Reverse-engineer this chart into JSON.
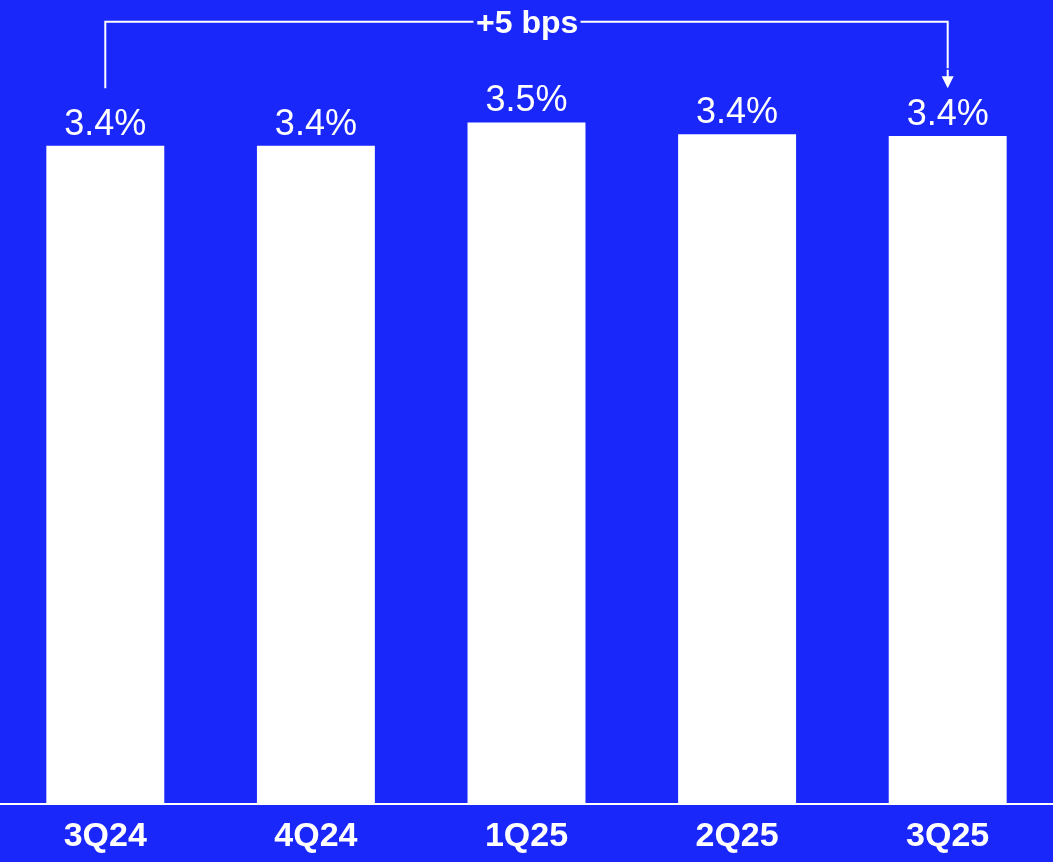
{
  "chart_data": {
    "type": "bar",
    "categories": [
      "3Q24",
      "4Q24",
      "1Q25",
      "2Q25",
      "3Q25"
    ],
    "values": [
      3.38,
      3.38,
      3.5,
      3.44,
      3.43
    ],
    "value_labels": [
      "3.4%",
      "3.4%",
      "3.5%",
      "3.4%",
      "3.4%"
    ],
    "color": "#ffffff",
    "ylim": [
      0,
      4.13
    ],
    "grid": false,
    "legend": false,
    "annotations": [
      "+5 bps"
    ]
  }
}
